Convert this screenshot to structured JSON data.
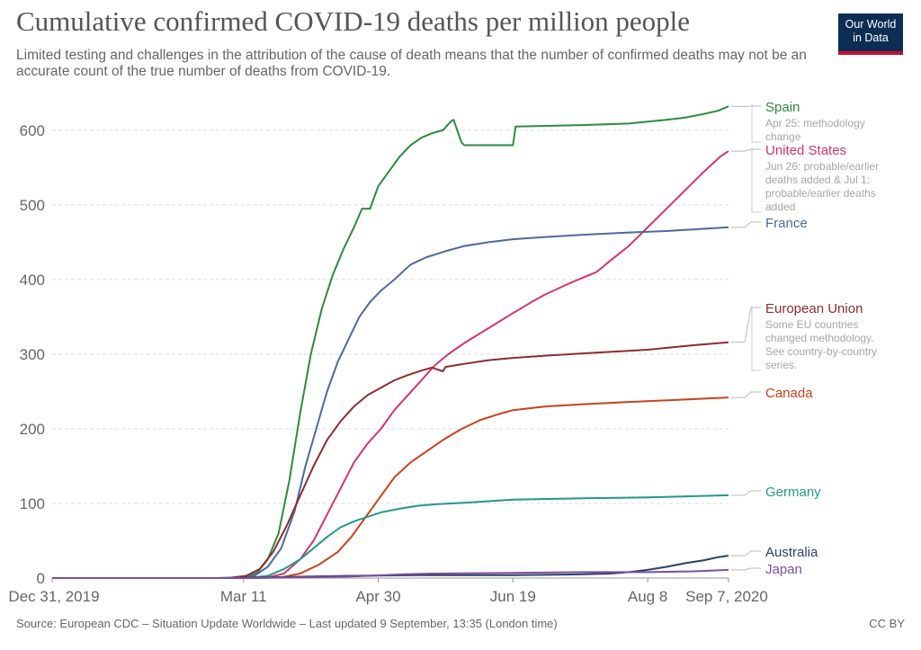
{
  "header": {
    "title": "Cumulative confirmed COVID-19 deaths per million people",
    "subtitle": "Limited testing and challenges in the attribution of the cause of death means that the number of confirmed deaths may not be an accurate count of the true number of deaths from COVID-19.",
    "logo_line1": "Our World",
    "logo_line2": "in Data"
  },
  "footer": {
    "source": "Source: European CDC – Situation Update Worldwide – Last updated 9 September, 13:35 (London time)",
    "license": "CC BY"
  },
  "colors": {
    "grid": "#dddddd",
    "axis_text": "#666666",
    "note": "#a6a6a6",
    "logo_bg": "#0c2e54",
    "logo_accent": "#c8102e"
  },
  "chart_data": {
    "type": "line",
    "title": "Cumulative confirmed COVID-19 deaths per million people",
    "x_start": "2019-12-31",
    "x_end": "2020-09-07",
    "ylim": [
      0,
      630
    ],
    "yticks": [
      0,
      100,
      200,
      300,
      400,
      500,
      600
    ],
    "grid": true,
    "legend": "right (labels at line ends)",
    "x_ticks": [
      {
        "date": "2019-12-31",
        "label": "Dec 31, 2019"
      },
      {
        "date": "2020-03-11",
        "label": "Mar 11"
      },
      {
        "date": "2020-04-30",
        "label": "Apr 30"
      },
      {
        "date": "2020-06-19",
        "label": "Jun 19"
      },
      {
        "date": "2020-08-08",
        "label": "Aug 8"
      },
      {
        "date": "2020-09-07",
        "label": "Sep 7, 2020"
      }
    ],
    "series": [
      {
        "name": "Spain",
        "color": "#2e8b3e",
        "note": "Apr 25: methodology change",
        "points": [
          [
            "2019-12-31",
            0
          ],
          [
            "2020-03-01",
            0
          ],
          [
            "2020-03-11",
            1
          ],
          [
            "2020-03-16",
            7
          ],
          [
            "2020-03-20",
            25
          ],
          [
            "2020-03-24",
            60
          ],
          [
            "2020-03-28",
            130
          ],
          [
            "2020-04-01",
            220
          ],
          [
            "2020-04-05",
            300
          ],
          [
            "2020-04-09",
            360
          ],
          [
            "2020-04-13",
            405
          ],
          [
            "2020-04-17",
            440
          ],
          [
            "2020-04-21",
            470
          ],
          [
            "2020-04-24",
            495
          ],
          [
            "2020-04-27",
            495
          ],
          [
            "2020-04-30",
            525
          ],
          [
            "2020-05-04",
            545
          ],
          [
            "2020-05-08",
            565
          ],
          [
            "2020-05-12",
            580
          ],
          [
            "2020-05-16",
            590
          ],
          [
            "2020-05-20",
            596
          ],
          [
            "2020-05-24",
            600
          ],
          [
            "2020-05-27",
            612
          ],
          [
            "2020-05-28",
            614
          ],
          [
            "2020-05-30",
            593
          ],
          [
            "2020-05-31",
            583
          ],
          [
            "2020-06-01",
            580
          ],
          [
            "2020-06-19",
            580
          ],
          [
            "2020-06-20",
            605
          ],
          [
            "2020-07-15",
            607
          ],
          [
            "2020-08-01",
            609
          ],
          [
            "2020-08-15",
            614
          ],
          [
            "2020-08-22",
            617
          ],
          [
            "2020-08-29",
            622
          ],
          [
            "2020-09-03",
            626
          ],
          [
            "2020-09-07",
            632
          ]
        ]
      },
      {
        "name": "United States",
        "color": "#d6336c",
        "note": "Jun 26: probable/earlier deaths added & Jul 1: probable/earlier deaths added",
        "points": [
          [
            "2019-12-31",
            0
          ],
          [
            "2020-03-10",
            0
          ],
          [
            "2020-03-20",
            1
          ],
          [
            "2020-03-26",
            6
          ],
          [
            "2020-04-01",
            25
          ],
          [
            "2020-04-06",
            50
          ],
          [
            "2020-04-11",
            85
          ],
          [
            "2020-04-16",
            120
          ],
          [
            "2020-04-21",
            155
          ],
          [
            "2020-04-26",
            180
          ],
          [
            "2020-05-01",
            200
          ],
          [
            "2020-05-06",
            225
          ],
          [
            "2020-05-11",
            245
          ],
          [
            "2020-05-16",
            265
          ],
          [
            "2020-05-21",
            285
          ],
          [
            "2020-05-26",
            300
          ],
          [
            "2020-06-01",
            315
          ],
          [
            "2020-06-10",
            335
          ],
          [
            "2020-06-19",
            355
          ],
          [
            "2020-06-26",
            370
          ],
          [
            "2020-07-01",
            380
          ],
          [
            "2020-07-10",
            395
          ],
          [
            "2020-07-20",
            410
          ],
          [
            "2020-07-25",
            425
          ],
          [
            "2020-08-01",
            445
          ],
          [
            "2020-08-08",
            470
          ],
          [
            "2020-08-15",
            495
          ],
          [
            "2020-08-22",
            520
          ],
          [
            "2020-08-29",
            545
          ],
          [
            "2020-09-04",
            565
          ],
          [
            "2020-09-07",
            572
          ]
        ]
      },
      {
        "name": "France",
        "color": "#4c6a9c",
        "note": "",
        "points": [
          [
            "2019-12-31",
            0
          ],
          [
            "2020-03-08",
            0
          ],
          [
            "2020-03-15",
            3
          ],
          [
            "2020-03-20",
            15
          ],
          [
            "2020-03-25",
            40
          ],
          [
            "2020-03-30",
            90
          ],
          [
            "2020-04-03",
            150
          ],
          [
            "2020-04-07",
            200
          ],
          [
            "2020-04-11",
            250
          ],
          [
            "2020-04-15",
            290
          ],
          [
            "2020-04-19",
            320
          ],
          [
            "2020-04-23",
            350
          ],
          [
            "2020-04-27",
            370
          ],
          [
            "2020-05-01",
            385
          ],
          [
            "2020-05-06",
            400
          ],
          [
            "2020-05-12",
            420
          ],
          [
            "2020-05-18",
            430
          ],
          [
            "2020-05-25",
            438
          ],
          [
            "2020-06-01",
            445
          ],
          [
            "2020-06-10",
            450
          ],
          [
            "2020-06-19",
            454
          ],
          [
            "2020-07-01",
            457
          ],
          [
            "2020-07-15",
            460
          ],
          [
            "2020-08-01",
            463
          ],
          [
            "2020-08-15",
            465
          ],
          [
            "2020-09-07",
            470
          ]
        ]
      },
      {
        "name": "European Union",
        "color": "#8c2d2d",
        "note": "Some EU countries changed methodology. See country-by-country series.",
        "points": [
          [
            "2019-12-31",
            0
          ],
          [
            "2020-03-05",
            0
          ],
          [
            "2020-03-12",
            3
          ],
          [
            "2020-03-17",
            12
          ],
          [
            "2020-03-22",
            35
          ],
          [
            "2020-03-27",
            70
          ],
          [
            "2020-04-01",
            110
          ],
          [
            "2020-04-06",
            150
          ],
          [
            "2020-04-11",
            185
          ],
          [
            "2020-04-16",
            210
          ],
          [
            "2020-04-21",
            230
          ],
          [
            "2020-04-26",
            245
          ],
          [
            "2020-05-01",
            255
          ],
          [
            "2020-05-06",
            265
          ],
          [
            "2020-05-11",
            272
          ],
          [
            "2020-05-16",
            278
          ],
          [
            "2020-05-20",
            282
          ],
          [
            "2020-05-24",
            277
          ],
          [
            "2020-05-25",
            283
          ],
          [
            "2020-06-01",
            287
          ],
          [
            "2020-06-10",
            292
          ],
          [
            "2020-06-19",
            295
          ],
          [
            "2020-07-01",
            298
          ],
          [
            "2020-07-20",
            302
          ],
          [
            "2020-08-08",
            306
          ],
          [
            "2020-08-25",
            312
          ],
          [
            "2020-09-07",
            316
          ]
        ]
      },
      {
        "name": "Canada",
        "color": "#c8421c",
        "note": "",
        "points": [
          [
            "2019-12-31",
            0
          ],
          [
            "2020-03-15",
            0
          ],
          [
            "2020-03-25",
            1
          ],
          [
            "2020-04-01",
            6
          ],
          [
            "2020-04-08",
            18
          ],
          [
            "2020-04-15",
            35
          ],
          [
            "2020-04-20",
            55
          ],
          [
            "2020-04-25",
            80
          ],
          [
            "2020-04-30",
            105
          ],
          [
            "2020-05-06",
            135
          ],
          [
            "2020-05-12",
            155
          ],
          [
            "2020-05-18",
            170
          ],
          [
            "2020-05-24",
            185
          ],
          [
            "2020-05-31",
            200
          ],
          [
            "2020-06-07",
            212
          ],
          [
            "2020-06-14",
            220
          ],
          [
            "2020-06-19",
            225
          ],
          [
            "2020-07-01",
            230
          ],
          [
            "2020-07-15",
            233
          ],
          [
            "2020-08-01",
            236
          ],
          [
            "2020-08-20",
            239
          ],
          [
            "2020-09-07",
            242
          ]
        ]
      },
      {
        "name": "Germany",
        "color": "#1f9a8a",
        "note": "",
        "points": [
          [
            "2019-12-31",
            0
          ],
          [
            "2020-03-12",
            0
          ],
          [
            "2020-03-20",
            3
          ],
          [
            "2020-03-26",
            12
          ],
          [
            "2020-04-01",
            25
          ],
          [
            "2020-04-06",
            40
          ],
          [
            "2020-04-11",
            55
          ],
          [
            "2020-04-16",
            68
          ],
          [
            "2020-04-21",
            76
          ],
          [
            "2020-04-26",
            82
          ],
          [
            "2020-05-01",
            88
          ],
          [
            "2020-05-08",
            93
          ],
          [
            "2020-05-15",
            97
          ],
          [
            "2020-05-22",
            99
          ],
          [
            "2020-06-01",
            101
          ],
          [
            "2020-06-19",
            105
          ],
          [
            "2020-07-15",
            107
          ],
          [
            "2020-08-08",
            108
          ],
          [
            "2020-09-07",
            111
          ]
        ]
      },
      {
        "name": "Australia",
        "color": "#2c3e6b",
        "note": "",
        "points": [
          [
            "2019-12-31",
            0
          ],
          [
            "2020-03-01",
            0
          ],
          [
            "2020-03-20",
            1
          ],
          [
            "2020-04-05",
            2
          ],
          [
            "2020-04-20",
            3
          ],
          [
            "2020-05-15",
            4
          ],
          [
            "2020-06-19",
            4
          ],
          [
            "2020-07-15",
            5
          ],
          [
            "2020-07-25",
            6
          ],
          [
            "2020-08-01",
            8
          ],
          [
            "2020-08-08",
            11
          ],
          [
            "2020-08-15",
            15
          ],
          [
            "2020-08-22",
            20
          ],
          [
            "2020-08-29",
            24
          ],
          [
            "2020-09-03",
            28
          ],
          [
            "2020-09-07",
            30
          ]
        ]
      },
      {
        "name": "Japan",
        "color": "#7a4ea3",
        "note": "",
        "points": [
          [
            "2019-12-31",
            0
          ],
          [
            "2020-02-13",
            0
          ],
          [
            "2020-03-11",
            0
          ],
          [
            "2020-04-01",
            1
          ],
          [
            "2020-04-20",
            2
          ],
          [
            "2020-05-10",
            5
          ],
          [
            "2020-05-20",
            6
          ],
          [
            "2020-06-19",
            7
          ],
          [
            "2020-07-15",
            8
          ],
          [
            "2020-08-08",
            8
          ],
          [
            "2020-08-25",
            9
          ],
          [
            "2020-09-07",
            11
          ]
        ]
      }
    ]
  }
}
